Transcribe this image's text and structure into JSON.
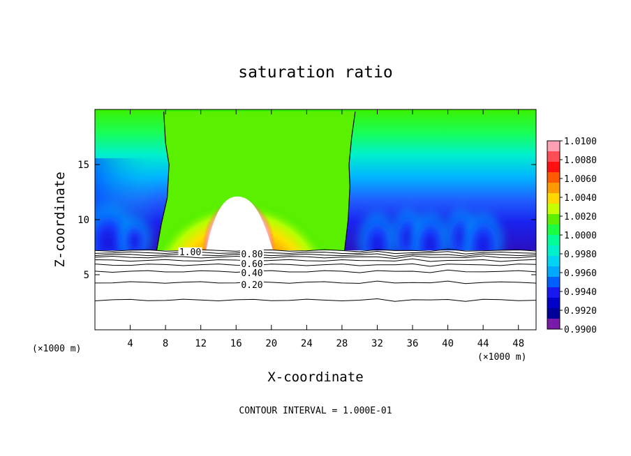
{
  "chart_data": {
    "type": "heatmap",
    "title": "saturation ratio",
    "xlabel": "X-coordinate",
    "ylabel": "Z-coordinate",
    "x_unit": "(×1000 m)",
    "y_unit": "(×1000 m)",
    "x_ticks": [
      4,
      8,
      12,
      16,
      20,
      24,
      28,
      32,
      36,
      40,
      44,
      48
    ],
    "y_ticks": [
      5,
      10,
      15
    ],
    "xlim": [
      0,
      50
    ],
    "ylim": [
      0,
      20
    ],
    "colorbar": {
      "labels": [
        "1.0100",
        "1.0080",
        "1.0060",
        "1.0040",
        "1.0020",
        "1.0000",
        "0.9980",
        "0.9960",
        "0.9940",
        "0.9920",
        "0.9900"
      ],
      "range": [
        0.99,
        1.01
      ],
      "colors": [
        "#ff9fb4",
        "#ff4d55",
        "#ff1010",
        "#ff5a00",
        "#ff9a00",
        "#ffd800",
        "#c8ff00",
        "#5cf000",
        "#1aff44",
        "#00ff99",
        "#00f0cc",
        "#00d4f2",
        "#00a8ff",
        "#0060ff",
        "#1818f0",
        "#0000c8",
        "#00009a",
        "#7a1aa8"
      ]
    },
    "contour_interval": "CONTOUR INTERVAL = 1.000E-01",
    "contour_labels": [
      {
        "text": "1.00",
        "x": 10.8,
        "z": 7.1
      },
      {
        "text": "0.80",
        "x": 17.8,
        "z": 6.9
      },
      {
        "text": "0.60",
        "x": 17.8,
        "z": 6.0
      },
      {
        "text": "0.40",
        "x": 17.8,
        "z": 5.2
      },
      {
        "text": "0.20",
        "x": 17.8,
        "z": 4.1
      }
    ],
    "contour_levels_z": [
      7.2,
      7.0,
      6.8,
      6.6,
      6.3,
      5.9,
      5.3,
      4.3,
      2.7
    ],
    "cloud_region": {
      "x_left": 7.0,
      "x_right": 28.3,
      "boundary_left": [
        [
          7.0,
          7.2
        ],
        [
          7.5,
          9.5
        ],
        [
          8.2,
          12
        ],
        [
          8.4,
          15
        ],
        [
          8.0,
          17
        ],
        [
          7.8,
          19.8
        ]
      ],
      "boundary_right": [
        [
          28.3,
          7.2
        ],
        [
          28.7,
          10
        ],
        [
          28.9,
          13
        ],
        [
          28.8,
          15
        ],
        [
          29.1,
          17.5
        ],
        [
          29.5,
          19.8
        ]
      ],
      "hot_core": {
        "x": 16.5,
        "z": 9.0,
        "rx": 10.5,
        "rz": 5.5,
        "value": 1.006
      },
      "supersat_core": {
        "x": 16.3,
        "z": 8.3,
        "rx": 3.3,
        "rz": 3.6,
        "value": 1.01
      }
    },
    "subsat_pockets": [
      {
        "x": 32,
        "z": 9.0,
        "w": 2.5,
        "h": 3.5
      },
      {
        "x": 35.5,
        "z": 9.5,
        "w": 2.2,
        "h": 3.0
      },
      {
        "x": 38.0,
        "z": 9.0,
        "w": 2.5,
        "h": 3.5
      },
      {
        "x": 41.5,
        "z": 9.5,
        "w": 2.2,
        "h": 3.0
      },
      {
        "x": 44.0,
        "z": 9.0,
        "w": 2.6,
        "h": 3.5
      },
      {
        "x": 1.5,
        "z": 9.5,
        "w": 3.5,
        "h": 4.0
      },
      {
        "x": 4.5,
        "z": 9.0,
        "w": 2.0,
        "h": 2.5
      }
    ],
    "surface_z": 7.2
  }
}
